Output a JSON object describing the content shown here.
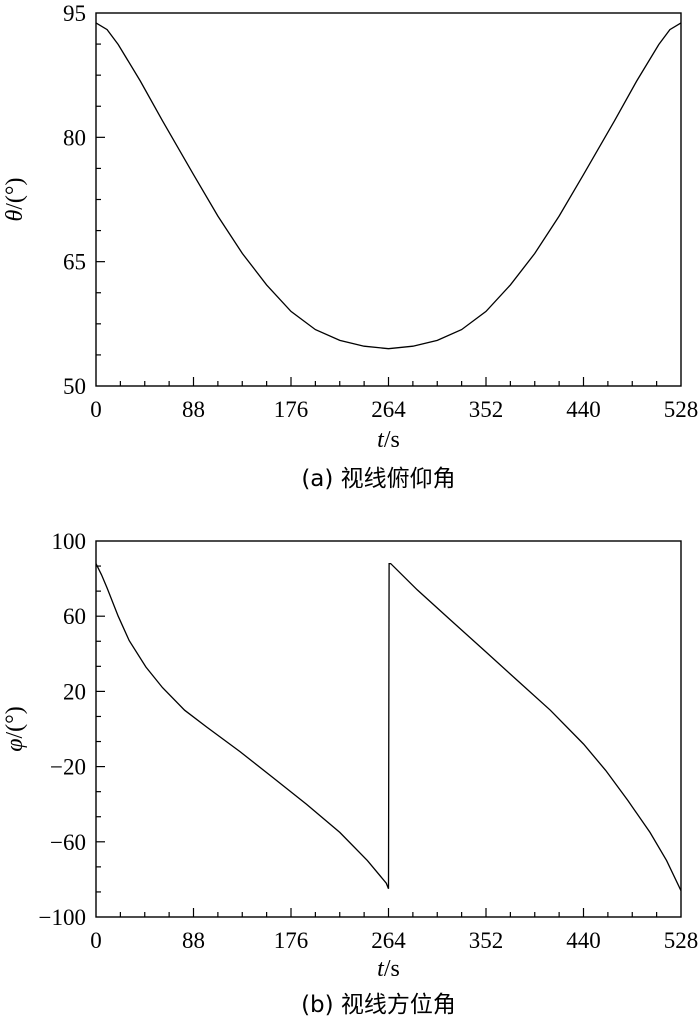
{
  "chart_data": [
    {
      "type": "line",
      "xlabel_var": "t",
      "xlabel_unit": "/s",
      "ylabel_var": "θ",
      "ylabel_unit": "/(°)",
      "caption": "(a) 视线俯仰角",
      "xlim": [
        0,
        528
      ],
      "ylim": [
        50,
        95
      ],
      "x_ticks": [
        "0",
        "88",
        "176",
        "264",
        "352",
        "440",
        "528"
      ],
      "y_ticks": [
        "50",
        "65",
        "80",
        "95"
      ],
      "series": [
        {
          "x": [
            0,
            10,
            20,
            40,
            60,
            88,
            110,
            132,
            154,
            176,
            198,
            220,
            242,
            264,
            286,
            308,
            330,
            352,
            374,
            396,
            418,
            440,
            468,
            488,
            508,
            518,
            528
          ],
          "values": [
            93.8,
            93.0,
            91.2,
            86.8,
            82.0,
            75.5,
            70.5,
            66.0,
            62.2,
            59.0,
            56.8,
            55.5,
            54.8,
            54.5,
            54.8,
            55.5,
            56.8,
            59.0,
            62.2,
            66.0,
            70.5,
            75.5,
            82.0,
            86.8,
            91.2,
            93.0,
            93.8
          ]
        }
      ]
    },
    {
      "type": "line",
      "xlabel_var": "t",
      "xlabel_unit": "/s",
      "ylabel_var": "φ",
      "ylabel_unit": "/(°)",
      "caption": "(b) 视线方位角",
      "xlim": [
        0,
        528
      ],
      "ylim": [
        -100,
        100
      ],
      "x_ticks": [
        "0",
        "88",
        "176",
        "264",
        "352",
        "440",
        "528"
      ],
      "y_ticks": [
        "−100",
        "−60",
        "−20",
        "20",
        "60",
        "100"
      ],
      "series": [
        {
          "x": [
            0,
            5,
            10,
            20,
            30,
            45,
            60,
            80,
            100,
            130,
            160,
            190,
            220,
            245,
            262,
            264,
            264.5,
            266,
            290,
            320,
            350,
            380,
            410,
            440,
            460,
            480,
            500,
            515,
            528
          ],
          "values": [
            88,
            82,
            75,
            60,
            47,
            33,
            22,
            10,
            1,
            -12,
            -26,
            -40,
            -55,
            -70,
            -82,
            -85,
            88,
            88,
            74,
            58,
            42,
            26,
            10,
            -8,
            -22,
            -38,
            -55,
            -70,
            -86
          ]
        }
      ]
    }
  ]
}
